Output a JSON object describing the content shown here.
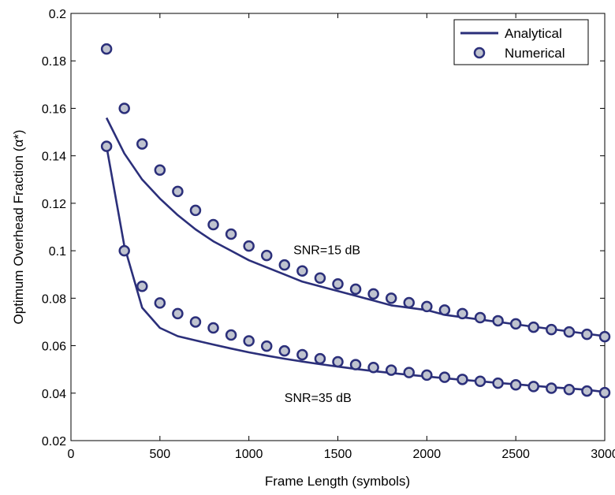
{
  "chart_data": {
    "type": "line",
    "xlabel": "Frame Length (symbols)",
    "ylabel": "Optimum Overhead Fraction (α*)",
    "xlim": [
      0,
      3000
    ],
    "ylim": [
      0.02,
      0.2
    ],
    "xticks": [
      0,
      500,
      1000,
      1500,
      2000,
      2500,
      3000
    ],
    "xtick_labels": [
      "0",
      "500",
      "1000",
      "1500",
      "2000",
      "2500",
      "3000"
    ],
    "yticks": [
      0.02,
      0.04,
      0.06,
      0.08,
      0.1,
      0.12,
      0.14,
      0.16,
      0.18,
      0.2
    ],
    "ytick_labels": [
      "0.02",
      "0.04",
      "0.06",
      "0.08",
      "0.1",
      "0.12",
      "0.14",
      "0.16",
      "0.18",
      "0.2"
    ],
    "grid": false,
    "legend_position": "top-right",
    "colors": {
      "line": "#2b2f7a",
      "marker_face": "#bfc3cf",
      "marker_edge": "#2b2f7a"
    },
    "series": [
      {
        "name": "Analytical",
        "style": "line",
        "group": "SNR=15 dB",
        "x": [
          200,
          300,
          400,
          500,
          600,
          700,
          800,
          900,
          1000,
          1100,
          1200,
          1300,
          1400,
          1500,
          1600,
          1700,
          1800,
          1900,
          2000,
          2100,
          2200,
          2300,
          2400,
          2500,
          2600,
          2700,
          2800,
          2900,
          3000
        ],
        "y": [
          0.156,
          0.141,
          0.13,
          0.122,
          0.115,
          0.109,
          0.104,
          0.1,
          0.096,
          0.093,
          0.09,
          0.087,
          0.085,
          0.083,
          0.081,
          0.079,
          0.077,
          0.076,
          0.075,
          0.073,
          0.072,
          0.071,
          0.07,
          0.069,
          0.068,
          0.067,
          0.066,
          0.065,
          0.064
        ]
      },
      {
        "name": "Numerical",
        "style": "marker",
        "group": "SNR=15 dB",
        "x": [
          200,
          300,
          400,
          500,
          600,
          700,
          800,
          900,
          1000,
          1100,
          1200,
          1300,
          1400,
          1500,
          1600,
          1700,
          1800,
          1900,
          2000,
          2100,
          2200,
          2300,
          2400,
          2500,
          2600,
          2700,
          2800,
          2900,
          3000
        ],
        "y": [
          0.185,
          0.16,
          0.145,
          0.134,
          0.125,
          0.117,
          0.111,
          0.107,
          0.102,
          0.098,
          0.094,
          0.0915,
          0.0885,
          0.086,
          0.0838,
          0.0818,
          0.08,
          0.0781,
          0.0765,
          0.075,
          0.0735,
          0.0718,
          0.0705,
          0.0692,
          0.0678,
          0.0668,
          0.0658,
          0.0648,
          0.0638
        ]
      },
      {
        "name": "Analytical",
        "style": "line",
        "group": "SNR=35 dB",
        "x": [
          200,
          300,
          400,
          500,
          600,
          700,
          800,
          900,
          1000,
          1100,
          1200,
          1300,
          1400,
          1500,
          1600,
          1700,
          1800,
          1900,
          2000,
          2100,
          2200,
          2300,
          2400,
          2500,
          2600,
          2700,
          2800,
          2900,
          3000
        ],
        "y": [
          0.144,
          0.102,
          0.076,
          0.0675,
          0.064,
          0.0622,
          0.0605,
          0.0588,
          0.0572,
          0.0558,
          0.0545,
          0.0533,
          0.0522,
          0.0512,
          0.0502,
          0.0493,
          0.0485,
          0.0477,
          0.047,
          0.0463,
          0.0456,
          0.045,
          0.0443,
          0.0437,
          0.0431,
          0.0425,
          0.042,
          0.0414,
          0.0405
        ]
      },
      {
        "name": "Numerical",
        "style": "marker",
        "group": "SNR=35 dB",
        "x": [
          200,
          300,
          400,
          500,
          600,
          700,
          800,
          900,
          1000,
          1100,
          1200,
          1300,
          1400,
          1500,
          1600,
          1700,
          1800,
          1900,
          2000,
          2100,
          2200,
          2300,
          2400,
          2500,
          2600,
          2700,
          2800,
          2900,
          3000
        ],
        "y": [
          0.144,
          0.1,
          0.085,
          0.078,
          0.0735,
          0.07,
          0.0675,
          0.0645,
          0.062,
          0.0598,
          0.0578,
          0.0562,
          0.0545,
          0.0532,
          0.052,
          0.0508,
          0.0497,
          0.0487,
          0.0476,
          0.0467,
          0.0458,
          0.045,
          0.0442,
          0.0435,
          0.0428,
          0.0421,
          0.0415,
          0.0409,
          0.0402
        ]
      }
    ],
    "legend": [
      {
        "label": "Analytical",
        "style": "line"
      },
      {
        "label": "Numerical",
        "style": "marker"
      }
    ],
    "annotations": [
      {
        "text": "SNR=15 dB",
        "x": 1250,
        "y": 0.0985
      },
      {
        "text": "SNR=35 dB",
        "x": 1200,
        "y": 0.0362
      }
    ]
  }
}
